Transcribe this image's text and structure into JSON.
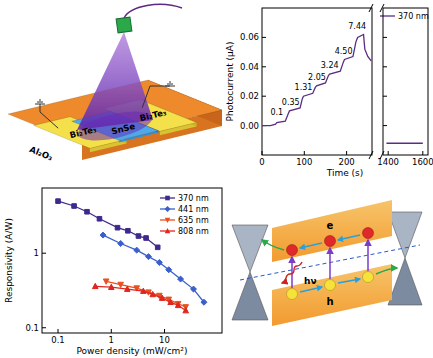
{
  "chart_data": [
    {
      "type": "line",
      "xlabel": "Time (s)",
      "ylabel": "Photocurrent (μA)",
      "x": [
        0,
        20,
        32,
        35,
        55,
        62,
        65,
        90,
        95,
        98,
        120,
        126,
        129,
        150,
        157,
        160,
        185,
        192,
        195,
        215,
        222,
        226,
        240,
        243,
        250,
        258
      ],
      "xlim": [
        0,
        260
      ],
      "xticks": [
        0,
        100,
        200
      ],
      "ylim": [
        -0.02,
        0.08
      ],
      "yticks": [
        {
          "value": 0,
          "label": "0.00"
        },
        {
          "value": 0.02,
          "label": "0.02"
        },
        {
          "value": 0.04,
          "label": "0.04"
        },
        {
          "value": 0.06,
          "label": "0.06"
        }
      ],
      "legend": "upper right",
      "series": [
        {
          "name": "370 nm",
          "color": "#5b2c83",
          "values": [
            0,
            0,
            0.001,
            0.002,
            0.003,
            0.008,
            0.01,
            0.012,
            0.018,
            0.02,
            0.022,
            0.026,
            0.027,
            0.029,
            0.034,
            0.035,
            0.037,
            0.043,
            0.045,
            0.047,
            0.057,
            0.06,
            0.062,
            0.052,
            0.047,
            0.044
          ]
        }
      ],
      "annotations": [
        {
          "text": "0.1",
          "x": 35,
          "y": 0.007
        },
        {
          "text": "0.35",
          "x": 68,
          "y": 0.014
        },
        {
          "text": "1.31",
          "x": 98,
          "y": 0.024
        },
        {
          "text": "2.05",
          "x": 130,
          "y": 0.031
        },
        {
          "text": "3.24",
          "x": 160,
          "y": 0.039
        },
        {
          "text": "4.50",
          "x": 193,
          "y": 0.049
        },
        {
          "text": "7.44",
          "x": 225,
          "y": 0.066
        }
      ]
    },
    {
      "type": "line",
      "x": [
        1390,
        1450,
        1500,
        1550,
        1600
      ],
      "xlim": [
        1370,
        1630
      ],
      "xticks": [
        1400,
        1600
      ],
      "ylim": [
        -0.02,
        0.08
      ],
      "yticks": [
        0,
        0.02,
        0.04,
        0.06
      ],
      "tick_labels": "x",
      "series": [
        {
          "color": "#5b2c83",
          "values": [
            -0.012,
            -0.012,
            -0.012,
            -0.012,
            -0.012
          ]
        }
      ]
    },
    {
      "type": "line",
      "xlabel": "Power density (mW/cm²)",
      "ylabel": "Responsivity (A/W)",
      "log": true,
      "xlim": [
        0.05,
        120
      ],
      "xticks": [
        0.1,
        1,
        10
      ],
      "ylim": [
        0.085,
        7.5
      ],
      "yticks": [
        0.1,
        1
      ],
      "legend": "upper right",
      "series": [
        {
          "name": "370 nm",
          "color": "#3f2a8c",
          "marker": "square",
          "x": [
            0.1,
            0.2,
            0.35,
            0.6,
            1.31,
            2.05,
            3.24,
            4.5,
            7.44
          ],
          "values": [
            5.0,
            4.3,
            3.6,
            2.9,
            2.2,
            2.0,
            1.7,
            1.6,
            1.2
          ]
        },
        {
          "name": "441 nm",
          "color": "#3a5fcd",
          "marker": "diamond",
          "x": [
            0.7,
            1.5,
            3,
            5,
            8,
            12,
            20,
            35,
            55
          ],
          "values": [
            1.75,
            1.35,
            1.1,
            0.9,
            0.75,
            0.6,
            0.45,
            0.33,
            0.22
          ]
        },
        {
          "name": "635 nm",
          "color": "#e8501e",
          "marker": "triangle-down",
          "x": [
            0.8,
            1.5,
            3,
            5,
            8,
            12,
            18,
            25
          ],
          "values": [
            0.42,
            0.38,
            0.34,
            0.3,
            0.27,
            0.24,
            0.21,
            0.19
          ]
        },
        {
          "name": "808 nm",
          "color": "#e0261e",
          "marker": "triangle-up",
          "x": [
            0.5,
            1,
            2,
            4,
            6,
            9,
            13,
            18,
            25
          ],
          "values": [
            0.36,
            0.35,
            0.33,
            0.31,
            0.28,
            0.25,
            0.22,
            0.2,
            0.17
          ]
        }
      ]
    }
  ],
  "device_schematic": {
    "electrodes": [
      "Bi₂Te₃",
      "Bi₂Te₃"
    ],
    "channel": "SnSe",
    "substrate": "Al₂O₃"
  },
  "band_diagram": {
    "electron": "e",
    "hole": "h",
    "photon": "hν"
  }
}
